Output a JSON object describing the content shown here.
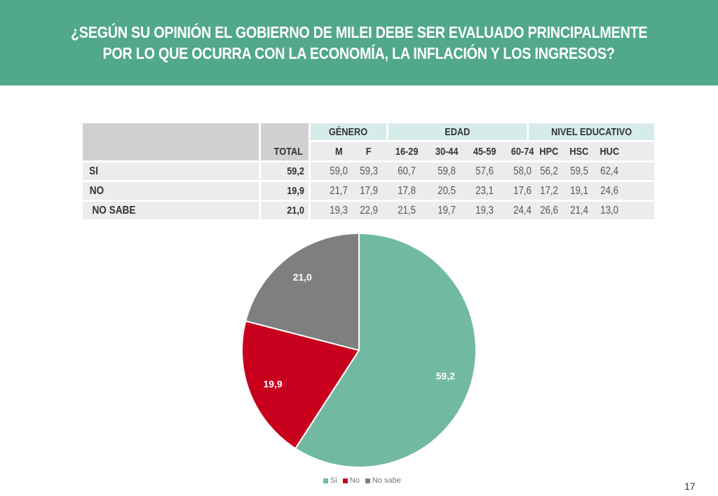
{
  "title": {
    "line1": "¿SEGÚN SU OPINIÓN EL GOBIERNO DE MILEI DEBE SER EVALUADO PRINCIPALMENTE",
    "line2": "POR LO QUE OCURRA CON LA ECONOMÍA, LA INFLACIÓN Y LOS INGRESOS?"
  },
  "colors": {
    "banner": "#52a88a",
    "si": "#72b9a2",
    "no": "#c8001e",
    "no_sabe": "#7f7f7f"
  },
  "table": {
    "groups": {
      "genero": "GÉNERO",
      "edad": "EDAD",
      "nivel": "NIVEL EDUCATIVO"
    },
    "columns": [
      "TOTAL",
      "M",
      "F",
      "16-29",
      "30-44",
      "45-59",
      "60-74",
      "HPC",
      "HSC",
      "HUC"
    ],
    "rows": [
      {
        "label": "SI",
        "values": [
          "59,2",
          "59,0",
          "59,3",
          "60,7",
          "59,8",
          "57,6",
          "58,0",
          "56,2",
          "59,5",
          "62,4"
        ]
      },
      {
        "label": "NO",
        "values": [
          "19,9",
          "21,7",
          "17,9",
          "17,8",
          "20,5",
          "23,1",
          "17,6",
          "17,2",
          "19,1",
          "24,6"
        ]
      },
      {
        "label": "NO SABE",
        "values": [
          "21,0",
          "19,3",
          "22,9",
          "21,5",
          "19,7",
          "19,3",
          "24,4",
          "26,6",
          "21,4",
          "13,0"
        ]
      }
    ]
  },
  "chart_data": {
    "type": "pie",
    "title": "",
    "categories": [
      "Si",
      "No",
      "No sabe"
    ],
    "values": [
      59.2,
      19.9,
      21.0
    ],
    "labels": [
      "59,2",
      "19,9",
      "21,0"
    ],
    "colors": [
      "#72b9a2",
      "#c8001e",
      "#7f7f7f"
    ],
    "legend": {
      "position": "bottom",
      "entries": [
        "Si",
        "No",
        "No sabe"
      ]
    }
  },
  "page_number": "17"
}
